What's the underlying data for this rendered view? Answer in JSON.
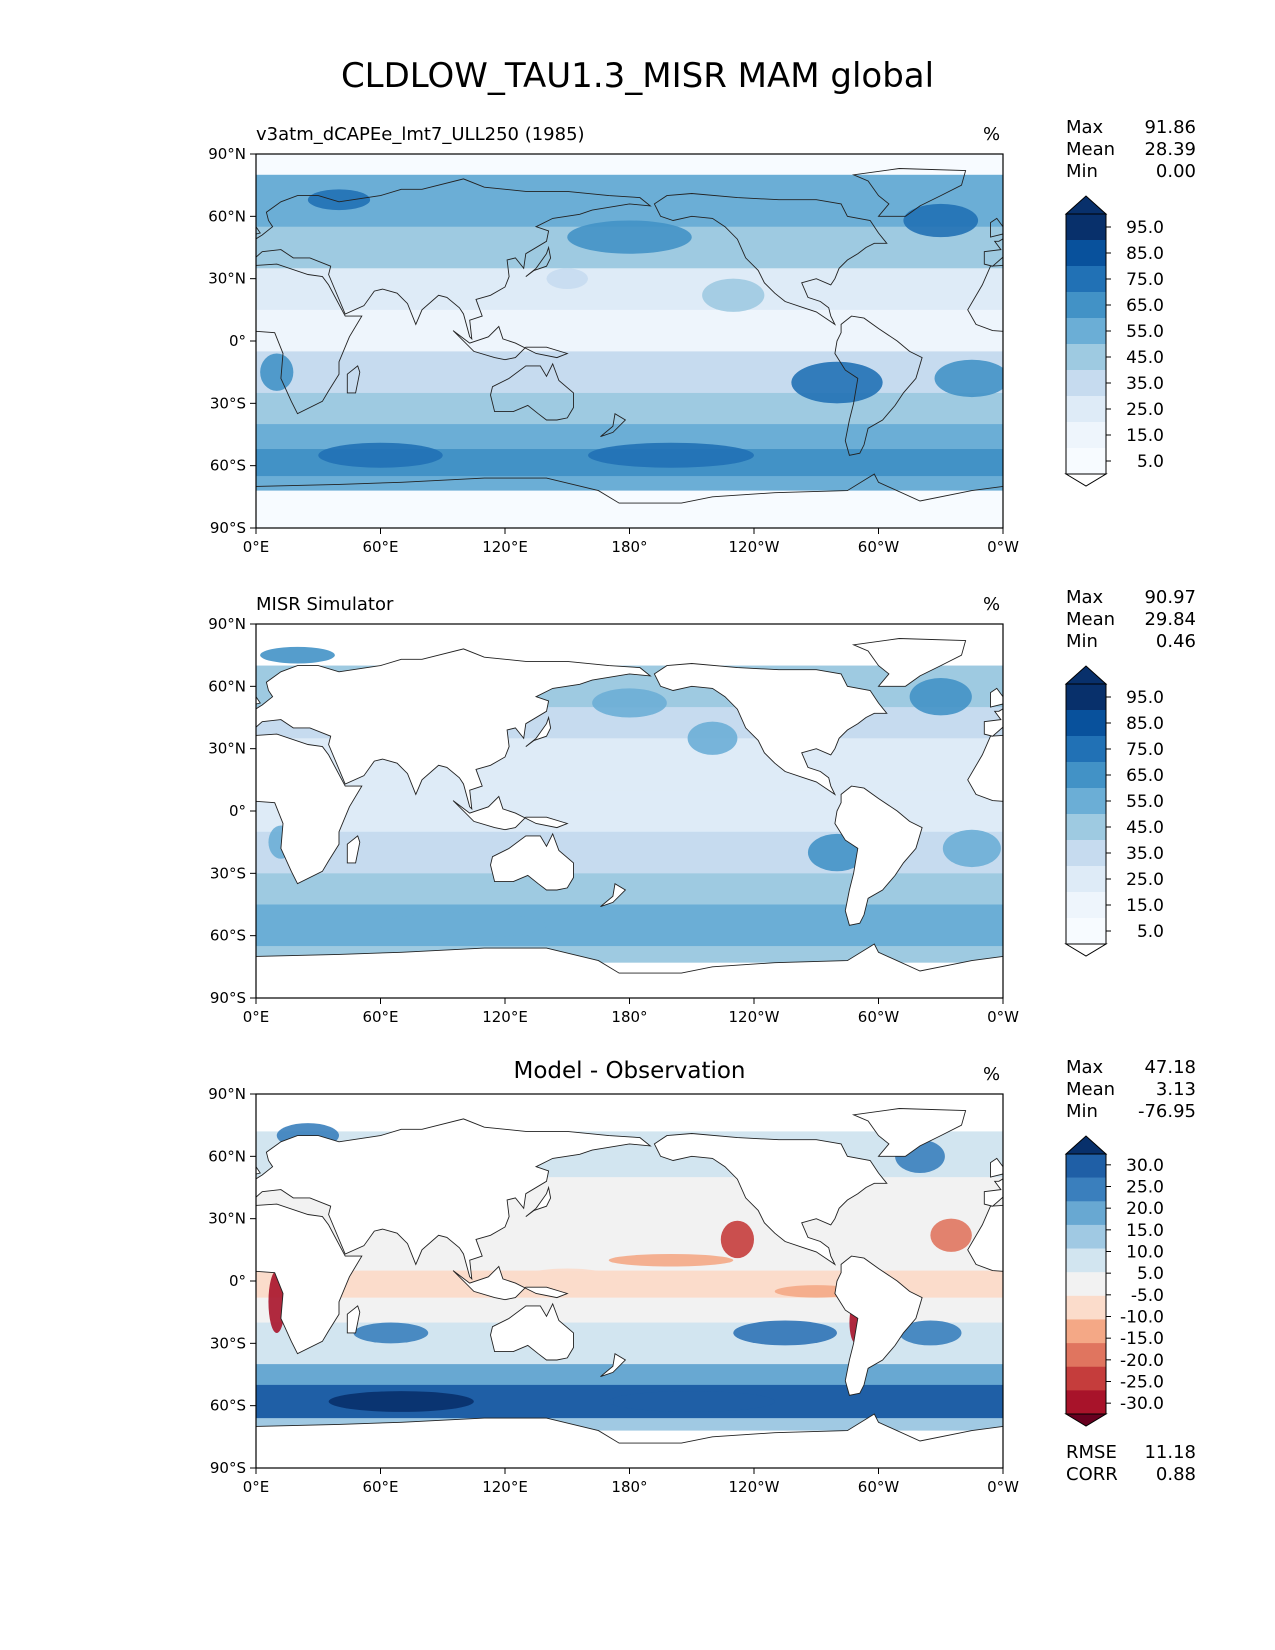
{
  "title": "CLDLOW_TAU1.3_MISR MAM global",
  "panels": [
    {
      "id": "model",
      "title": "v3atm_dCAPEe_lmt7_ULL250 (1985)",
      "title_style": "left",
      "units": "%",
      "stats": [
        {
          "label": "Max",
          "value": "91.86"
        },
        {
          "label": "Mean",
          "value": "28.39"
        },
        {
          "label": "Min",
          "value": "0.00"
        }
      ],
      "colorbar": {
        "labels": [
          "95.0",
          "85.0",
          "75.0",
          "65.0",
          "55.0",
          "45.0",
          "35.0",
          "25.0",
          "15.0",
          "5.0"
        ],
        "colors": [
          "#08306b",
          "#08519c",
          "#2171b5",
          "#4292c6",
          "#6baed6",
          "#9ecae1",
          "#c6dbef",
          "#deebf7",
          "#eef5fc",
          "#f7fbff"
        ],
        "extend_top_color": "#08306b",
        "extend_bottom_color": "#ffffff"
      }
    },
    {
      "id": "obs",
      "title": "MISR Simulator",
      "title_style": "left",
      "units": "%",
      "stats": [
        {
          "label": "Max",
          "value": "90.97"
        },
        {
          "label": "Mean",
          "value": "29.84"
        },
        {
          "label": "Min",
          "value": "0.46"
        }
      ],
      "colorbar": {
        "labels": [
          "95.0",
          "85.0",
          "75.0",
          "65.0",
          "55.0",
          "45.0",
          "35.0",
          "25.0",
          "15.0",
          "5.0"
        ],
        "colors": [
          "#08306b",
          "#08519c",
          "#2171b5",
          "#4292c6",
          "#6baed6",
          "#9ecae1",
          "#c6dbef",
          "#deebf7",
          "#eef5fc",
          "#f7fbff"
        ],
        "extend_top_color": "#08306b",
        "extend_bottom_color": "#ffffff"
      }
    },
    {
      "id": "diff",
      "title": "Model - Observation",
      "title_style": "center",
      "units": "%",
      "stats": [
        {
          "label": "Max",
          "value": "47.18"
        },
        {
          "label": "Mean",
          "value": "3.13"
        },
        {
          "label": "Min",
          "value": "-76.95"
        }
      ],
      "metrics": [
        {
          "label": "RMSE",
          "value": "11.18"
        },
        {
          "label": "CORR",
          "value": "0.88"
        }
      ],
      "colorbar": {
        "labels": [
          "30.0",
          "25.0",
          "20.0",
          "15.0",
          "10.0",
          "5.0",
          "-5.0",
          "-10.0",
          "-15.0",
          "-20.0",
          "-25.0",
          "-30.0"
        ],
        "colors": [
          "#1f5fa6",
          "#3a7fbd",
          "#68a8d2",
          "#a0c9e3",
          "#d2e5f0",
          "#f2f2f2",
          "#fbdccb",
          "#f4a886",
          "#e0755f",
          "#c53d3c",
          "#a8132a"
        ],
        "extend_top_color": "#08306b",
        "extend_bottom_color": "#67001f"
      }
    }
  ],
  "map_axes": {
    "lat_ticks": [
      "90°N",
      "60°N",
      "30°N",
      "0°",
      "30°S",
      "60°S",
      "90°S"
    ],
    "lon_ticks": [
      "0°E",
      "60°E",
      "120°E",
      "180°",
      "120°W",
      "60°W",
      "0°W"
    ]
  }
}
